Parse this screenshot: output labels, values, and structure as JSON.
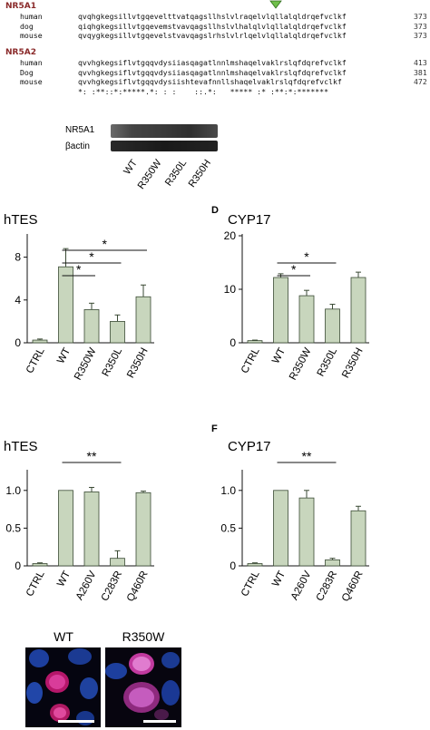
{
  "alignment": {
    "groups": [
      {
        "gene": "NR5A1",
        "rows": [
          {
            "species": "human",
            "seq": "qvqhgkegsillvtgqevelttvatqagsllhslvlraqelvlqllalqldrqefvclkf",
            "pos": "373"
          },
          {
            "species": "dog",
            "seq": "qiqhgkegsillvtgqevemstvavqagsllhslvlhalqlvlqllalqldrqefvclkf",
            "pos": "373"
          },
          {
            "species": "mouse",
            "seq": "qvqygkegsillvtgqevelstvavqagslrhslvlrlqelvlqllalqldrqefvclkf",
            "pos": "373"
          }
        ]
      },
      {
        "gene": "NR5A2",
        "rows": [
          {
            "species": "human",
            "seq": "qvvhgkegsiflvtgqqvdysiiasqagatlnnlmshaqelvaklrslqfdqrefvclkf",
            "pos": "413"
          },
          {
            "species": "Dog",
            "seq": "qvvhgkegsiflvtgqqvdysiiasqagatlnnlmshaqelvaklrslqfdqrefvclkf",
            "pos": "381"
          },
          {
            "species": "mouse",
            "seq": "qvvhgkegsiflvtgqqvdysiishtevafnnllshaqelvaklrslqfdqrefvclkf",
            "pos": "472"
          }
        ]
      }
    ],
    "consensus": "*: :**::*:*****.*: : :    ::.*:   ***** :* :**:*:*******"
  },
  "western": {
    "bands": [
      "NR5A1",
      "βactin"
    ],
    "lanes": [
      "WT",
      "R350W",
      "R350L",
      "R350H"
    ]
  },
  "panels": {
    "top_left": {
      "title": "hTES",
      "letter": ""
    },
    "top_right": {
      "title": "CYP17",
      "letter": "D"
    },
    "bottom_left": {
      "title": "hTES",
      "letter": ""
    },
    "bottom_right": {
      "title": "CYP17",
      "letter": "F"
    }
  },
  "chart_data": [
    {
      "type": "bar",
      "title": "hTES",
      "categories": [
        "CTRL",
        "WT",
        "R350W",
        "R350L",
        "R350H"
      ],
      "values": [
        0.25,
        7.1,
        3.1,
        2.0,
        4.3
      ],
      "errors": [
        0.1,
        1.7,
        0.6,
        0.6,
        1.1
      ],
      "ylim": [
        0,
        10
      ],
      "yticks": [
        0,
        4,
        8
      ],
      "significance": [
        {
          "from": "WT",
          "to": "R350W",
          "label": "*"
        },
        {
          "from": "WT",
          "to": "R350L",
          "label": "*"
        },
        {
          "from": "WT",
          "to": "R350H",
          "label": "*"
        }
      ]
    },
    {
      "type": "bar",
      "title": "CYP17",
      "categories": [
        "CTRL",
        "WT",
        "R350W",
        "R350L",
        "R350H"
      ],
      "values": [
        0.4,
        12.2,
        8.8,
        6.3,
        12.2
      ],
      "errors": [
        0.1,
        0.7,
        1.0,
        0.9,
        1.0
      ],
      "ylim": [
        0,
        20
      ],
      "yticks": [
        0,
        10,
        20
      ],
      "significance": [
        {
          "from": "WT",
          "to": "R350W",
          "label": "*"
        },
        {
          "from": "WT",
          "to": "R350L",
          "label": "*"
        }
      ]
    },
    {
      "type": "bar",
      "title": "hTES",
      "categories": [
        "CTRL",
        "WT",
        "A260V",
        "C283R",
        "Q460R"
      ],
      "values": [
        0.03,
        1.0,
        0.98,
        0.1,
        0.97
      ],
      "errors": [
        0.01,
        0.0,
        0.06,
        0.1,
        0.02
      ],
      "ylim": [
        0,
        1.25
      ],
      "yticks": [
        0,
        0.5,
        1.0
      ],
      "ytick_labels": [
        "0",
        "0.5",
        "1.0"
      ],
      "significance": [
        {
          "from": "WT",
          "to": "C283R",
          "label": "**"
        }
      ]
    },
    {
      "type": "bar",
      "title": "CYP17",
      "categories": [
        "CTRL",
        "WT",
        "A260V",
        "C283R",
        "Q460R"
      ],
      "values": [
        0.03,
        1.0,
        0.9,
        0.08,
        0.73
      ],
      "errors": [
        0.01,
        0.0,
        0.1,
        0.02,
        0.06
      ],
      "ylim": [
        0,
        1.25
      ],
      "yticks": [
        0,
        0.5,
        1.0
      ],
      "ytick_labels": [
        "0",
        "0.5",
        "1.0"
      ],
      "significance": [
        {
          "from": "WT",
          "to": "C283R",
          "label": "**"
        }
      ]
    }
  ],
  "microscopy": {
    "labels": [
      "WT",
      "R350W"
    ]
  },
  "colors": {
    "bar_fill": "#c8d6bd",
    "bar_stroke": "#3a4a34",
    "arrow": "#6fbf4a",
    "gene_label": "#8a2a2a"
  }
}
